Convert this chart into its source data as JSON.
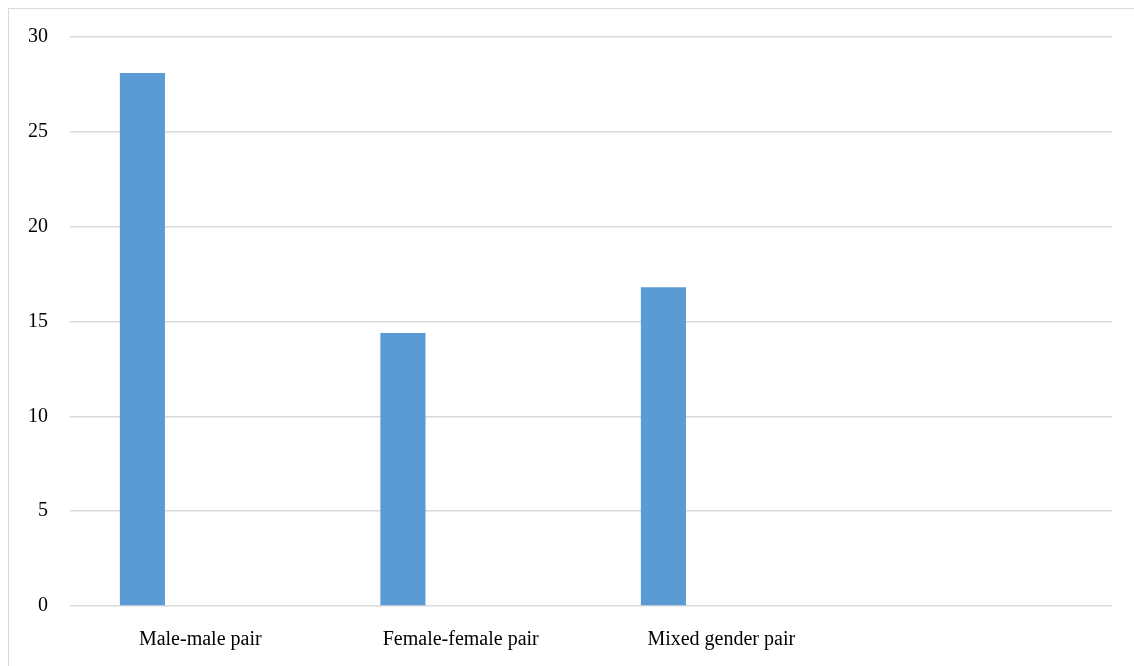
{
  "chart_data": {
    "type": "bar",
    "categories": [
      "Male-male pair",
      "Female-female pair",
      "Mixed gender pair",
      null
    ],
    "values": [
      28.1,
      14.4,
      16.8,
      null
    ],
    "color": "#5b9bd5",
    "ylim": [
      0,
      30
    ],
    "yticks": [
      0,
      5,
      10,
      15,
      20,
      25,
      30
    ],
    "grid": "y"
  }
}
